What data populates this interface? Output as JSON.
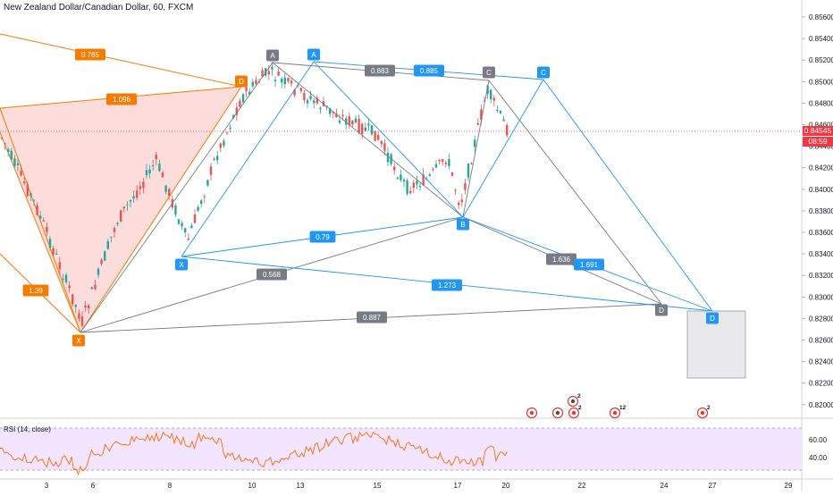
{
  "header": {
    "title": "New Zealand Dollar/Canadian Dollar, 60, FXCM"
  },
  "price_axis": {
    "ticks": [
      "0.85600",
      "0.85400",
      "0.85200",
      "0.85000",
      "0.84800",
      "0.84600",
      "0.84400",
      "0.84200",
      "0.84000",
      "0.83800",
      "0.83600",
      "0.83400",
      "0.83200",
      "0.83000",
      "0.82800",
      "0.82600",
      "0.82400",
      "0.82200",
      "0.82000"
    ],
    "current_price": "0.84545",
    "countdown": "08:59"
  },
  "time_axis": {
    "labels": [
      "3",
      "6",
      "8",
      "10",
      "13",
      "15",
      "17",
      "20",
      "22",
      "24",
      "27",
      "29"
    ]
  },
  "rsi": {
    "title": "RSI (14, close)",
    "ticks": [
      "60.00",
      "40.00"
    ]
  },
  "colors": {
    "orange": "#f57c00",
    "blue": "#2196f3",
    "gray": "#787b86",
    "up": "#26a69a",
    "down": "#ef5350",
    "rsi_line": "#ff6d00",
    "rsi_fill": "#f3e5ff",
    "price_line": "#f23645"
  },
  "patterns": {
    "orange": {
      "labels": [
        "D",
        "X"
      ],
      "ratios": [
        "0.785",
        "1.096",
        "1.39"
      ]
    },
    "gray": {
      "labels": [
        "A",
        "C",
        "B",
        "D"
      ],
      "ratios": [
        "0.883",
        "0.568",
        "1.636",
        "0.887"
      ]
    },
    "blue": {
      "labels": [
        "A",
        "C",
        "X",
        "B",
        "D"
      ],
      "ratios": [
        "0.885",
        "0.79",
        "1.691",
        "1.273"
      ]
    }
  },
  "events": {
    "badges": [
      "2",
      "2",
      "12",
      "2"
    ]
  }
}
